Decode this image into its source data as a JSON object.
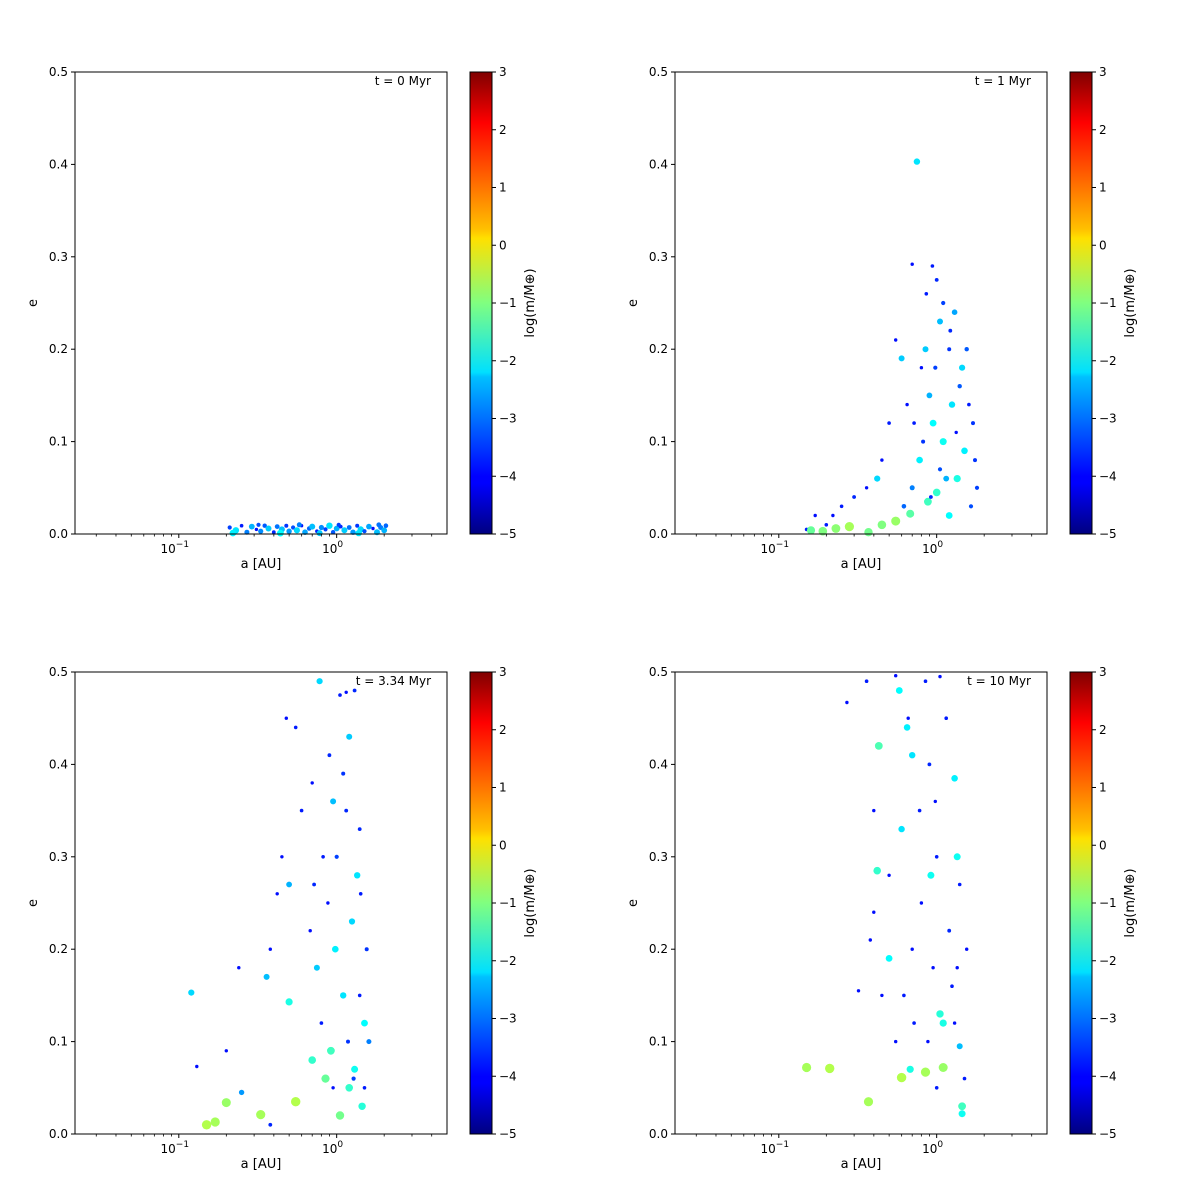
{
  "chart_data": [
    {
      "type": "scatter",
      "title": "t = 0 Myr",
      "xlabel": "a [AU]",
      "ylabel": "e",
      "xscale": "log",
      "xlim": [
        0.022,
        5.0
      ],
      "ylim": [
        0,
        0.5
      ],
      "yticks": [
        "0.0",
        "0.1",
        "0.2",
        "0.3",
        "0.4",
        "0.5"
      ],
      "xticks": [
        {
          "value": 0.1,
          "base": "10",
          "exp": "−1"
        },
        {
          "value": 1,
          "base": "10",
          "exp": "0"
        }
      ],
      "colorbar": {
        "label": "log(m/M⊕)",
        "range": [
          -5,
          3
        ],
        "ticks": [
          "−5",
          "−4",
          "−3",
          "−2",
          "−1",
          "0",
          "1",
          "2",
          "3"
        ],
        "colormap": "jet"
      },
      "points": [
        [
          0.21,
          0.007,
          -3.5
        ],
        [
          0.23,
          0.004,
          -2.2
        ],
        [
          0.25,
          0.009,
          -3.8
        ],
        [
          0.27,
          0.002,
          -3.0
        ],
        [
          0.29,
          0.008,
          -2.6
        ],
        [
          0.31,
          0.005,
          -3.9
        ],
        [
          0.33,
          0.003,
          -2.9
        ],
        [
          0.35,
          0.009,
          -3.3
        ],
        [
          0.37,
          0.006,
          -2.4
        ],
        [
          0.4,
          0.002,
          -3.7
        ],
        [
          0.42,
          0.008,
          -3.1
        ],
        [
          0.45,
          0.005,
          -2.5
        ],
        [
          0.48,
          0.009,
          -3.6
        ],
        [
          0.5,
          0.003,
          -2.8
        ],
        [
          0.53,
          0.007,
          -3.4
        ],
        [
          0.56,
          0.004,
          -2.3
        ],
        [
          0.6,
          0.009,
          -3.9
        ],
        [
          0.63,
          0.002,
          -2.7
        ],
        [
          0.67,
          0.006,
          -3.2
        ],
        [
          0.7,
          0.008,
          -2.5
        ],
        [
          0.75,
          0.003,
          -3.8
        ],
        [
          0.8,
          0.007,
          -2.9
        ],
        [
          0.85,
          0.005,
          -3.5
        ],
        [
          0.9,
          0.009,
          -2.2
        ],
        [
          0.95,
          0.002,
          -3.3
        ],
        [
          1.0,
          0.006,
          -2.6
        ],
        [
          1.06,
          0.008,
          -3.7
        ],
        [
          1.12,
          0.004,
          -2.4
        ],
        [
          1.2,
          0.007,
          -3.1
        ],
        [
          1.27,
          0.002,
          -2.8
        ],
        [
          1.35,
          0.009,
          -3.6
        ],
        [
          1.42,
          0.005,
          -2.3
        ],
        [
          1.5,
          0.003,
          -3.4
        ],
        [
          1.6,
          0.008,
          -2.7
        ],
        [
          1.7,
          0.006,
          -3.9
        ],
        [
          1.8,
          0.002,
          -2.5
        ],
        [
          1.9,
          0.007,
          -3.0
        ],
        [
          2.0,
          0.004,
          -2.6
        ],
        [
          2.05,
          0.009,
          -3.2
        ],
        [
          0.22,
          0.001,
          -2.1
        ],
        [
          0.32,
          0.01,
          -3.4
        ],
        [
          0.44,
          0.001,
          -2.0
        ],
        [
          0.58,
          0.01,
          -3.0
        ],
        [
          0.78,
          0.001,
          -2.4
        ],
        [
          1.03,
          0.01,
          -3.5
        ],
        [
          1.38,
          0.001,
          -2.2
        ],
        [
          1.85,
          0.01,
          -3.1
        ]
      ]
    },
    {
      "type": "scatter",
      "title": "t = 1 Myr",
      "xlabel": "a [AU]",
      "ylabel": "e",
      "xscale": "log",
      "xlim": [
        0.022,
        5.0
      ],
      "ylim": [
        0,
        0.5
      ],
      "yticks": [
        "0.0",
        "0.1",
        "0.2",
        "0.3",
        "0.4",
        "0.5"
      ],
      "xticks": [
        {
          "value": 0.1,
          "base": "10",
          "exp": "−1"
        },
        {
          "value": 1,
          "base": "10",
          "exp": "0"
        }
      ],
      "colorbar": {
        "label": "log(m/M⊕)",
        "range": [
          -5,
          3
        ],
        "ticks": [
          "−5",
          "−4",
          "−3",
          "−2",
          "−1",
          "0",
          "1",
          "2",
          "3"
        ],
        "colormap": "jet"
      },
      "points": [
        [
          0.75,
          0.403,
          -2.2
        ],
        [
          0.94,
          0.29,
          -3.8
        ],
        [
          0.7,
          0.292,
          -3.9
        ],
        [
          1.0,
          0.275,
          -3.7
        ],
        [
          0.86,
          0.26,
          -3.8
        ],
        [
          1.1,
          0.25,
          -3.5
        ],
        [
          0.55,
          0.21,
          -3.9
        ],
        [
          0.6,
          0.19,
          -2.4
        ],
        [
          1.05,
          0.23,
          -2.5
        ],
        [
          1.3,
          0.24,
          -2.7
        ],
        [
          1.2,
          0.2,
          -3.6
        ],
        [
          0.8,
          0.18,
          -3.9
        ],
        [
          0.9,
          0.15,
          -2.6
        ],
        [
          1.4,
          0.16,
          -3.3
        ],
        [
          1.6,
          0.14,
          -3.8
        ],
        [
          1.7,
          0.12,
          -3.6
        ],
        [
          0.65,
          0.14,
          -3.9
        ],
        [
          0.5,
          0.12,
          -3.8
        ],
        [
          0.45,
          0.08,
          -3.9
        ],
        [
          0.42,
          0.06,
          -2.3
        ],
        [
          0.36,
          0.05,
          -3.9
        ],
        [
          0.3,
          0.04,
          -3.7
        ],
        [
          0.25,
          0.03,
          -3.8
        ],
        [
          0.22,
          0.02,
          -3.9
        ],
        [
          0.2,
          0.01,
          -3.8
        ],
        [
          0.17,
          0.02,
          -3.9
        ],
        [
          0.15,
          0.005,
          -3.8
        ],
        [
          0.16,
          0.004,
          -1.2
        ],
        [
          0.19,
          0.003,
          -1.0
        ],
        [
          0.23,
          0.006,
          -0.9
        ],
        [
          0.28,
          0.008,
          -0.7
        ],
        [
          0.37,
          0.002,
          -1.1
        ],
        [
          0.45,
          0.01,
          -1.0
        ],
        [
          0.55,
          0.014,
          -0.8
        ],
        [
          0.68,
          0.022,
          -1.3
        ],
        [
          0.88,
          0.035,
          -1.5
        ],
        [
          1.0,
          0.045,
          -1.6
        ],
        [
          1.2,
          0.02,
          -2.0
        ],
        [
          1.35,
          0.06,
          -1.8
        ],
        [
          1.5,
          0.09,
          -2.1
        ],
        [
          0.95,
          0.12,
          -2.0
        ],
        [
          1.1,
          0.1,
          -1.9
        ],
        [
          0.78,
          0.08,
          -2.1
        ],
        [
          1.25,
          0.14,
          -2.2
        ],
        [
          1.45,
          0.18,
          -2.3
        ],
        [
          0.85,
          0.2,
          -2.4
        ],
        [
          1.15,
          0.06,
          -2.6
        ],
        [
          0.7,
          0.05,
          -3.0
        ],
        [
          0.62,
          0.03,
          -3.2
        ],
        [
          1.8,
          0.05,
          -3.5
        ],
        [
          1.75,
          0.08,
          -3.6
        ],
        [
          1.65,
          0.03,
          -3.4
        ],
        [
          1.55,
          0.2,
          -3.3
        ],
        [
          0.72,
          0.12,
          -3.8
        ],
        [
          0.98,
          0.18,
          -3.5
        ],
        [
          1.22,
          0.22,
          -3.7
        ],
        [
          1.33,
          0.11,
          -3.9
        ],
        [
          0.82,
          0.1,
          -3.6
        ],
        [
          1.05,
          0.07,
          -3.4
        ],
        [
          0.92,
          0.04,
          -3.7
        ]
      ]
    },
    {
      "type": "scatter",
      "title": "t = 3.34 Myr",
      "xlabel": "a [AU]",
      "ylabel": "e",
      "xscale": "log",
      "xlim": [
        0.022,
        5.0
      ],
      "ylim": [
        0,
        0.5
      ],
      "yticks": [
        "0.0",
        "0.1",
        "0.2",
        "0.3",
        "0.4",
        "0.5"
      ],
      "xticks": [
        {
          "value": 0.1,
          "base": "10",
          "exp": "−1"
        },
        {
          "value": 1,
          "base": "10",
          "exp": "0"
        }
      ],
      "colorbar": {
        "label": "log(m/M⊕)",
        "range": [
          -5,
          3
        ],
        "ticks": [
          "−5",
          "−4",
          "−3",
          "−2",
          "−1",
          "0",
          "1",
          "2",
          "3"
        ],
        "colormap": "jet"
      },
      "points": [
        [
          0.78,
          0.49,
          -2.3
        ],
        [
          1.05,
          0.475,
          -3.8
        ],
        [
          1.15,
          0.478,
          -3.9
        ],
        [
          1.3,
          0.48,
          -3.7
        ],
        [
          1.2,
          0.43,
          -2.4
        ],
        [
          0.48,
          0.45,
          -3.9
        ],
        [
          0.55,
          0.44,
          -3.8
        ],
        [
          0.9,
          0.41,
          -3.7
        ],
        [
          1.1,
          0.39,
          -3.6
        ],
        [
          0.7,
          0.38,
          -3.9
        ],
        [
          0.6,
          0.35,
          -3.8
        ],
        [
          0.95,
          0.36,
          -2.5
        ],
        [
          1.4,
          0.33,
          -3.7
        ],
        [
          0.82,
          0.3,
          -3.8
        ],
        [
          0.45,
          0.3,
          -3.9
        ],
        [
          0.42,
          0.26,
          -3.9
        ],
        [
          0.5,
          0.27,
          -2.6
        ],
        [
          0.38,
          0.2,
          -3.9
        ],
        [
          0.36,
          0.17,
          -2.5
        ],
        [
          0.24,
          0.18,
          -3.9
        ],
        [
          0.2,
          0.09,
          -3.9
        ],
        [
          0.12,
          0.153,
          -2.3
        ],
        [
          0.13,
          0.073,
          -3.9
        ],
        [
          0.15,
          0.01,
          -0.6
        ],
        [
          0.17,
          0.013,
          -0.7
        ],
        [
          0.2,
          0.034,
          -0.8
        ],
        [
          0.25,
          0.045,
          -2.8
        ],
        [
          0.33,
          0.021,
          -0.7
        ],
        [
          0.38,
          0.01,
          -3.7
        ],
        [
          0.55,
          0.035,
          -0.6
        ],
        [
          0.5,
          0.143,
          -1.8
        ],
        [
          0.7,
          0.08,
          -1.6
        ],
        [
          0.85,
          0.06,
          -1.2
        ],
        [
          0.92,
          0.09,
          -1.5
        ],
        [
          1.05,
          0.02,
          -1.1
        ],
        [
          1.2,
          0.05,
          -1.6
        ],
        [
          1.3,
          0.07,
          -1.9
        ],
        [
          1.45,
          0.03,
          -1.7
        ],
        [
          1.5,
          0.12,
          -2.0
        ],
        [
          1.1,
          0.15,
          -2.2
        ],
        [
          0.98,
          0.2,
          -2.1
        ],
        [
          1.25,
          0.23,
          -2.3
        ],
        [
          0.75,
          0.18,
          -2.4
        ],
        [
          1.35,
          0.28,
          -2.2
        ],
        [
          1.6,
          0.1,
          -3.0
        ],
        [
          1.55,
          0.2,
          -3.6
        ],
        [
          1.4,
          0.15,
          -3.8
        ],
        [
          0.88,
          0.25,
          -3.9
        ],
        [
          1.0,
          0.3,
          -3.5
        ],
        [
          1.15,
          0.35,
          -3.7
        ],
        [
          0.8,
          0.12,
          -3.8
        ],
        [
          0.68,
          0.22,
          -3.9
        ],
        [
          1.28,
          0.06,
          -3.5
        ],
        [
          1.5,
          0.05,
          -3.8
        ],
        [
          0.95,
          0.05,
          -3.9
        ],
        [
          1.18,
          0.1,
          -3.6
        ],
        [
          1.42,
          0.26,
          -3.8
        ],
        [
          0.72,
          0.27,
          -3.7
        ]
      ]
    },
    {
      "type": "scatter",
      "title": "t = 10 Myr",
      "xlabel": "a [AU]",
      "ylabel": "e",
      "xscale": "log",
      "xlim": [
        0.022,
        5.0
      ],
      "ylim": [
        0,
        0.5
      ],
      "yticks": [
        "0.0",
        "0.1",
        "0.2",
        "0.3",
        "0.4",
        "0.5"
      ],
      "xticks": [
        {
          "value": 0.1,
          "base": "10",
          "exp": "−1"
        },
        {
          "value": 1,
          "base": "10",
          "exp": "0"
        }
      ],
      "colorbar": {
        "label": "log(m/M⊕)",
        "range": [
          -5,
          3
        ],
        "ticks": [
          "−5",
          "−4",
          "−3",
          "−2",
          "−1",
          "0",
          "1",
          "2",
          "3"
        ],
        "colormap": "jet"
      },
      "points": [
        [
          0.15,
          0.072,
          -0.7
        ],
        [
          0.21,
          0.071,
          -0.6
        ],
        [
          0.37,
          0.035,
          -0.7
        ],
        [
          0.6,
          0.061,
          -0.6
        ],
        [
          0.85,
          0.067,
          -0.7
        ],
        [
          1.1,
          0.072,
          -0.8
        ],
        [
          0.43,
          0.42,
          -1.4
        ],
        [
          0.42,
          0.285,
          -1.6
        ],
        [
          0.5,
          0.19,
          -2.0
        ],
        [
          0.58,
          0.48,
          -2.0
        ],
        [
          0.65,
          0.44,
          -2.1
        ],
        [
          0.7,
          0.41,
          -2.2
        ],
        [
          0.92,
          0.28,
          -1.9
        ],
        [
          1.05,
          0.13,
          -1.7
        ],
        [
          1.1,
          0.12,
          -1.8
        ],
        [
          1.3,
          0.385,
          -2.1
        ],
        [
          1.35,
          0.3,
          -1.9
        ],
        [
          1.4,
          0.095,
          -2.5
        ],
        [
          1.45,
          0.03,
          -1.5
        ],
        [
          1.45,
          0.022,
          -1.9
        ],
        [
          0.68,
          0.07,
          -1.8
        ],
        [
          0.6,
          0.33,
          -2.2
        ],
        [
          0.27,
          0.467,
          -3.9
        ],
        [
          0.36,
          0.49,
          -3.8
        ],
        [
          0.55,
          0.496,
          -3.9
        ],
        [
          0.85,
          0.49,
          -3.8
        ],
        [
          1.05,
          0.495,
          -3.9
        ],
        [
          0.4,
          0.35,
          -3.9
        ],
        [
          0.32,
          0.155,
          -3.9
        ],
        [
          0.4,
          0.24,
          -3.9
        ],
        [
          0.38,
          0.21,
          -3.9
        ],
        [
          0.55,
          0.1,
          -3.9
        ],
        [
          0.62,
          0.15,
          -3.8
        ],
        [
          0.7,
          0.2,
          -3.9
        ],
        [
          0.78,
          0.35,
          -3.8
        ],
        [
          0.8,
          0.25,
          -3.9
        ],
        [
          0.9,
          0.4,
          -3.7
        ],
        [
          0.95,
          0.18,
          -3.9
        ],
        [
          1.0,
          0.3,
          -3.8
        ],
        [
          1.2,
          0.22,
          -3.7
        ],
        [
          1.25,
          0.16,
          -3.8
        ],
        [
          1.35,
          0.18,
          -3.9
        ],
        [
          1.5,
          0.06,
          -3.8
        ],
        [
          1.55,
          0.2,
          -3.9
        ],
        [
          1.15,
          0.45,
          -3.8
        ],
        [
          0.66,
          0.45,
          -3.9
        ],
        [
          0.72,
          0.12,
          -3.8
        ],
        [
          1.3,
          0.12,
          -3.9
        ],
        [
          1.4,
          0.27,
          -3.8
        ],
        [
          0.88,
          0.1,
          -3.9
        ],
        [
          0.5,
          0.28,
          -3.9
        ],
        [
          0.45,
          0.15,
          -3.9
        ],
        [
          1.0,
          0.05,
          -3.8
        ],
        [
          0.98,
          0.36,
          -3.9
        ]
      ]
    }
  ]
}
